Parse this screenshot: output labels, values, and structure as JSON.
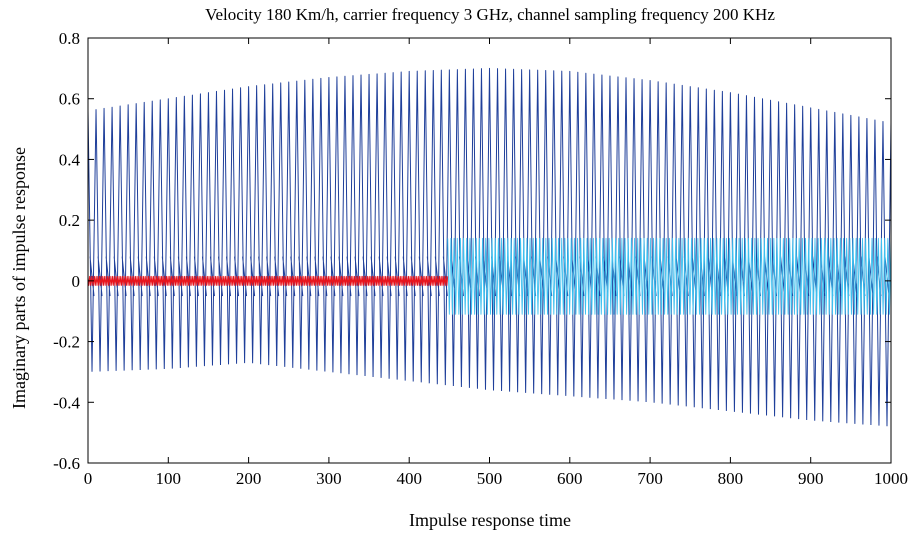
{
  "chart_data": {
    "type": "line",
    "title": "Velocity 180 Km/h, carrier frequency 3 GHz, channel sampling frequency 200 KHz",
    "xlabel": "Impulse response time",
    "ylabel": "Imaginary parts of impulse response",
    "xlim": [
      0,
      1000
    ],
    "ylim": [
      -0.6,
      0.8
    ],
    "x_ticks": [
      0,
      100,
      200,
      300,
      400,
      500,
      600,
      700,
      800,
      900,
      1000
    ],
    "x_tick_labels": [
      "0",
      "100",
      "200",
      "300",
      "400",
      "500",
      "600",
      "700",
      "800",
      "900",
      "1000"
    ],
    "y_ticks": [
      -0.6,
      -0.4,
      -0.2,
      0,
      0.2,
      0.4,
      0.6,
      0.8
    ],
    "y_tick_labels": [
      "-0.6",
      "-0.4",
      "-0.2",
      "0",
      "0.2",
      "0.4",
      "0.6",
      "0.8"
    ],
    "grid": false,
    "legend": "none",
    "series": [
      {
        "color": "#1f3f9a",
        "style": "rapid oscillation",
        "x_range": [
          0,
          1000
        ],
        "cycles": 100,
        "upper_envelope": {
          "x": [
            0,
            100,
            200,
            300,
            400,
            500,
            600,
            700,
            800,
            900,
            1000
          ],
          "y": [
            0.56,
            0.6,
            0.64,
            0.67,
            0.69,
            0.7,
            0.69,
            0.66,
            0.62,
            0.57,
            0.52
          ]
        },
        "lower_envelope": {
          "x": [
            0,
            100,
            200,
            300,
            400,
            500,
            600,
            700,
            800,
            900,
            1000
          ],
          "y": [
            -0.3,
            -0.29,
            -0.27,
            -0.3,
            -0.33,
            -0.36,
            -0.38,
            -0.4,
            -0.43,
            -0.46,
            -0.48
          ]
        },
        "inner_band": [
          -0.05,
          0.08
        ]
      },
      {
        "color": "#3ec0ef",
        "style": "dense oscillation",
        "x_range": [
          448,
          1000
        ],
        "cycles": 140,
        "upper_envelope": {
          "x": [
            448,
            1000
          ],
          "y": [
            0.14,
            0.14
          ]
        },
        "lower_envelope": {
          "x": [
            448,
            1000
          ],
          "y": [
            -0.11,
            -0.11
          ]
        }
      },
      {
        "color": "#e8141c",
        "style": "dense oscillation",
        "x_range": [
          0,
          448
        ],
        "cycles": 220,
        "upper_envelope": {
          "x": [
            0,
            448
          ],
          "y": [
            0.015,
            0.015
          ]
        },
        "lower_envelope": {
          "x": [
            0,
            448
          ],
          "y": [
            -0.015,
            -0.015
          ]
        }
      }
    ]
  }
}
